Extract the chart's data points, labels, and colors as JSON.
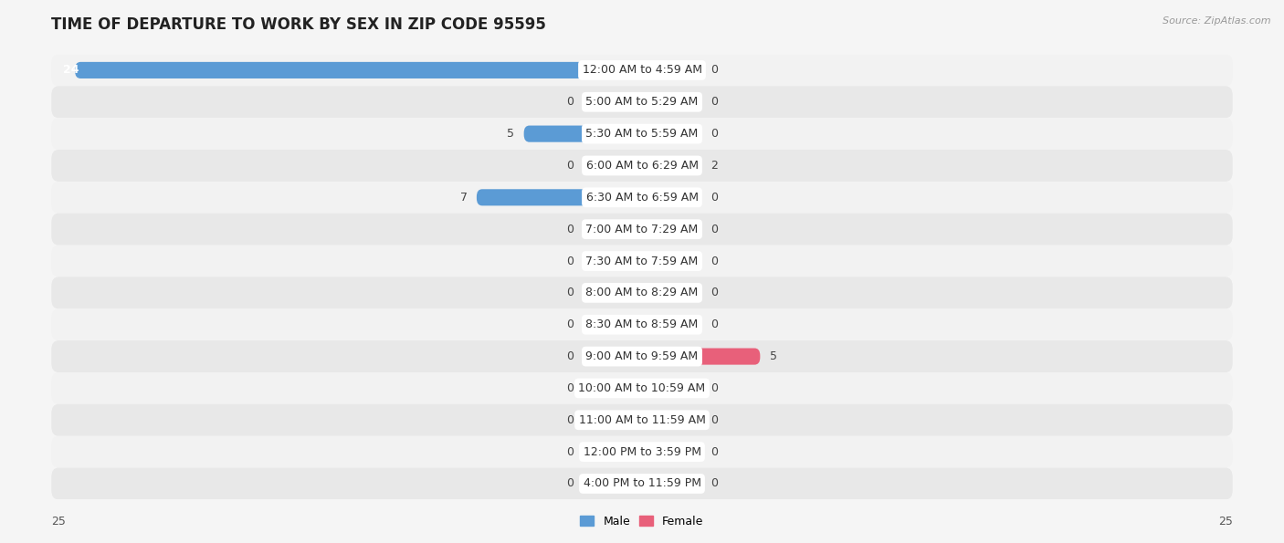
{
  "title": "TIME OF DEPARTURE TO WORK BY SEX IN ZIP CODE 95595",
  "source": "Source: ZipAtlas.com",
  "categories": [
    "12:00 AM to 4:59 AM",
    "5:00 AM to 5:29 AM",
    "5:30 AM to 5:59 AM",
    "6:00 AM to 6:29 AM",
    "6:30 AM to 6:59 AM",
    "7:00 AM to 7:29 AM",
    "7:30 AM to 7:59 AM",
    "8:00 AM to 8:29 AM",
    "8:30 AM to 8:59 AM",
    "9:00 AM to 9:59 AM",
    "10:00 AM to 10:59 AM",
    "11:00 AM to 11:59 AM",
    "12:00 PM to 3:59 PM",
    "4:00 PM to 11:59 PM"
  ],
  "male_values": [
    24,
    0,
    5,
    0,
    7,
    0,
    0,
    0,
    0,
    0,
    0,
    0,
    0,
    0
  ],
  "female_values": [
    0,
    0,
    0,
    2,
    0,
    0,
    0,
    0,
    0,
    5,
    0,
    0,
    0,
    0
  ],
  "male_color_full": "#5b9bd5",
  "male_color_stub": "#adc8e8",
  "female_color_full": "#e8607a",
  "female_color_stub": "#f4b8c4",
  "row_bg_light": "#f2f2f2",
  "row_bg_dark": "#e8e8e8",
  "axis_max": 25,
  "stub_min": 2.5,
  "title_fontsize": 12,
  "category_fontsize": 9,
  "value_fontsize": 9,
  "source_fontsize": 8,
  "background_color": "#f5f5f5",
  "legend_square_size": 12
}
